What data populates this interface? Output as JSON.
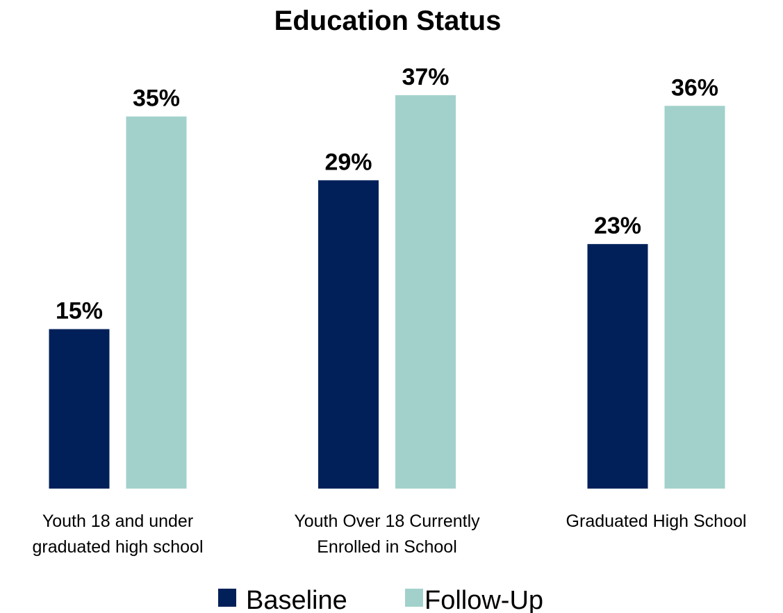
{
  "chart_data": {
    "type": "bar",
    "title": "Education Status",
    "xlabel": "",
    "ylabel": "",
    "ylim": [
      0,
      37
    ],
    "grid": false,
    "legend_position": "bottom-center",
    "categories": [
      [
        "Youth 18 and under",
        "graduated high school"
      ],
      [
        "Youth Over 18 Currently",
        "Enrolled in School"
      ],
      [
        "Graduated High School"
      ]
    ],
    "series": [
      {
        "name": "Baseline",
        "values": [
          15,
          29,
          23
        ],
        "labels": [
          "15%",
          "29%",
          "23%"
        ],
        "color": "#012059"
      },
      {
        "name": "Follow-Up",
        "values": [
          35,
          37,
          36
        ],
        "labels": [
          "35%",
          "37%",
          "36%"
        ],
        "color": "#a2d1cb"
      }
    ]
  }
}
